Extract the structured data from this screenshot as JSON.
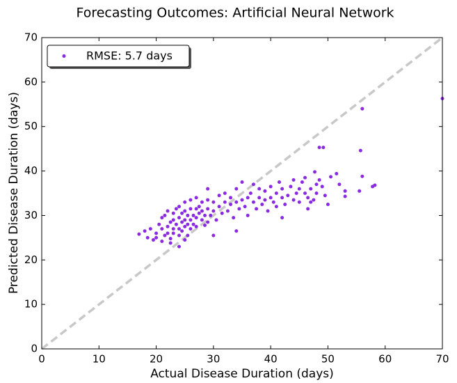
{
  "chart_data": {
    "type": "scatter",
    "title": "Forecasting Outcomes: Artificial Neural Network",
    "x_label": "Actual Disease Duration (days)",
    "y_label": "Predicted Disease Duration (days)",
    "xlim": [
      0,
      70
    ],
    "ylim": [
      0,
      70
    ],
    "xticks": [
      0,
      10,
      20,
      30,
      40,
      50,
      60,
      70
    ],
    "yticks": [
      0,
      10,
      20,
      30,
      40,
      50,
      60,
      70
    ],
    "grid": false,
    "legend": "upper left",
    "identity_line": true,
    "series": [
      {
        "name": "RMSE: 5.7 days",
        "color": "#8a2be2",
        "x": [
          20,
          20.5,
          21,
          21,
          21.5,
          21.5,
          22,
          22,
          22,
          22.5,
          22.5,
          23,
          23,
          23,
          23,
          23.5,
          23.5,
          24,
          24,
          24,
          24,
          24.5,
          24.5,
          24.5,
          25,
          25,
          25,
          25,
          25.5,
          25.5,
          25.5,
          26,
          26,
          26,
          26,
          26.5,
          26.5,
          27,
          27,
          27,
          27,
          27.5,
          27.5,
          28,
          28,
          28,
          28.5,
          28.5,
          29,
          29,
          29.5,
          29,
          30,
          30,
          30.5,
          31,
          31,
          31.5,
          32,
          32,
          32.5,
          33,
          33,
          33.5,
          34,
          34,
          34.5,
          35,
          35,
          35.5,
          36,
          36,
          36.5,
          37,
          37,
          37.5,
          38,
          38,
          38.5,
          39,
          39,
          39.5,
          40,
          40,
          40.5,
          41,
          41,
          41.5,
          42,
          42,
          42.5,
          43,
          43.5,
          44,
          44,
          44.5,
          45,
          45,
          45.5,
          46,
          46,
          46.5,
          47,
          47.5,
          48,
          48,
          48.5,
          49,
          49.5,
          17,
          18,
          18.5,
          19.5,
          19,
          20,
          21,
          24,
          25,
          22.5,
          47.7,
          48.5,
          49.2,
          50.5,
          51.5,
          52,
          53,
          53,
          55.5,
          55.7,
          56,
          56,
          57.8,
          58.2,
          70,
          50,
          47,
          29,
          34,
          30,
          42,
          46.5
        ],
        "y": [
          26,
          28,
          27,
          29.5,
          25.5,
          30,
          27.5,
          26,
          31,
          28.5,
          24.8,
          29,
          27,
          30.5,
          26,
          28,
          31.5,
          27,
          29.5,
          25.5,
          32,
          28.5,
          30.5,
          26.5,
          29,
          27.5,
          31,
          33,
          28,
          30,
          25.5,
          29,
          31.5,
          27,
          33.5,
          30,
          28,
          29.5,
          31.5,
          27.5,
          34,
          30.5,
          32,
          29,
          31,
          33,
          30,
          27.8,
          31.5,
          33.5,
          30,
          28.5,
          31,
          33,
          29,
          32,
          34.5,
          30.5,
          33,
          35,
          31,
          32.5,
          34,
          29.5,
          33,
          36,
          31.5,
          33.5,
          37.5,
          32,
          34,
          30,
          35,
          33,
          37,
          31.5,
          34,
          36,
          32.5,
          33.5,
          35.5,
          31,
          34,
          36.5,
          33,
          35,
          32,
          37.5,
          34,
          36,
          32.5,
          34.5,
          36.5,
          33.5,
          38,
          35,
          36,
          33,
          37.5,
          35,
          38.5,
          34,
          36,
          33.5,
          37,
          35,
          38,
          36.5,
          34.5,
          25.8,
          26.5,
          25,
          24.5,
          27,
          25,
          24.2,
          23,
          24.5,
          23.8,
          39.8,
          45.3,
          45.3,
          38.7,
          39.4,
          37,
          34.3,
          35.5,
          35.5,
          44.6,
          38.8,
          54,
          36.5,
          36.8,
          56.3,
          32.5,
          33,
          36,
          26.5,
          25.5,
          29.5,
          31.5
        ]
      }
    ]
  }
}
